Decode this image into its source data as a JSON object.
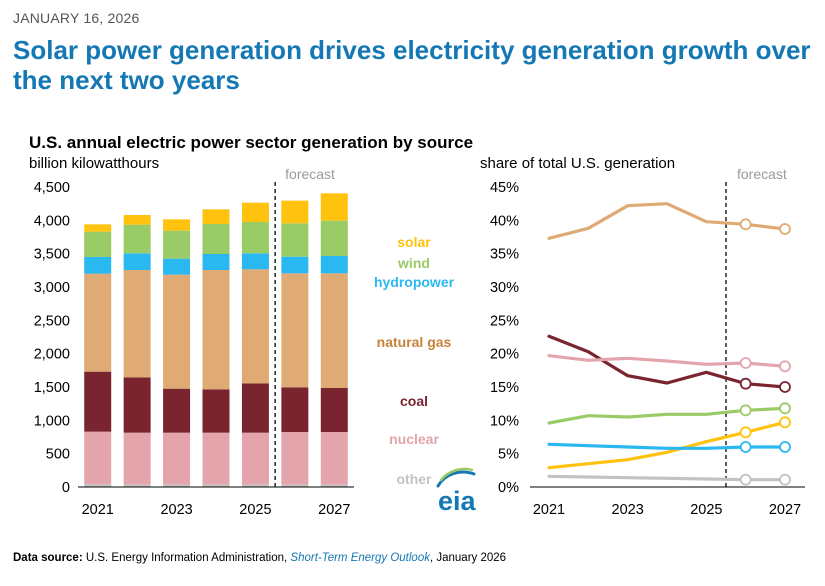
{
  "header": {
    "date": "JANUARY 16, 2026",
    "headline": "Solar power generation drives electricity generation growth over the next two years"
  },
  "chart": {
    "subtitle": "U.S. annual electric power sector generation by source",
    "left_unit": "billion kilowatthours",
    "right_unit": "share of total U.S. generation",
    "forecast_label": "forecast"
  },
  "legend": {
    "solar": "solar",
    "wind": "wind",
    "hydropower": "hydropower",
    "natural_gas": "natural gas",
    "coal": "coal",
    "nuclear": "nuclear",
    "other": "other"
  },
  "logo_text": "eia",
  "footer": {
    "label": "Data source:",
    "source": "U.S. Energy Information Administration,",
    "report": "Short-Term Energy Outlook",
    "date": ", January 2026"
  },
  "colors": {
    "solar": "#ffc20e",
    "wind": "#99cc66",
    "hydropower": "#2ab8f0",
    "natural_gas": "#e0aa74",
    "coal": "#7a2430",
    "nuclear": "#e4a4ac",
    "other": "#c2c2c2",
    "legend_natural_gas": "#c8823a",
    "headline": "#1478b4"
  },
  "chart_data": [
    {
      "type": "bar",
      "stacked": true,
      "categories": [
        2021,
        2022,
        2023,
        2024,
        2025,
        2026,
        2027
      ],
      "x_tick_labels": [
        "2021",
        "2023",
        "2025",
        "2027"
      ],
      "forecast_start": 2026,
      "ylim": [
        0,
        4500
      ],
      "y_tick_labels": [
        "0",
        "500",
        "1,000",
        "1,500",
        "2,000",
        "2,500",
        "3,000",
        "3,500",
        "4,000",
        "4,500"
      ],
      "series": [
        {
          "name": "other",
          "key": "other",
          "values": [
            40,
            35,
            35,
            35,
            35,
            35,
            35
          ]
        },
        {
          "name": "nuclear",
          "key": "nuclear",
          "values": [
            790,
            780,
            780,
            780,
            780,
            790,
            790
          ]
        },
        {
          "name": "coal",
          "key": "coal",
          "values": [
            900,
            830,
            660,
            650,
            740,
            670,
            660
          ]
        },
        {
          "name": "natural gas",
          "key": "natural_gas",
          "values": [
            1470,
            1610,
            1710,
            1790,
            1710,
            1710,
            1720
          ]
        },
        {
          "name": "hydropower",
          "key": "hydropower",
          "values": [
            250,
            250,
            240,
            240,
            240,
            250,
            260
          ]
        },
        {
          "name": "wind",
          "key": "wind",
          "values": [
            380,
            430,
            420,
            450,
            470,
            500,
            530
          ]
        },
        {
          "name": "solar",
          "key": "solar",
          "values": [
            110,
            145,
            170,
            220,
            290,
            340,
            410
          ]
        }
      ]
    },
    {
      "type": "line",
      "x": [
        2021,
        2022,
        2023,
        2024,
        2025,
        2026,
        2027
      ],
      "x_tick_labels": [
        "2021",
        "2023",
        "2025",
        "2027"
      ],
      "forecast_start": 2026,
      "ylim": [
        0,
        45
      ],
      "y_tick_labels": [
        "0%",
        "5%",
        "10%",
        "15%",
        "20%",
        "25%",
        "30%",
        "35%",
        "40%",
        "45%"
      ],
      "series": [
        {
          "name": "natural gas",
          "key": "natural_gas",
          "values": [
            37.3,
            38.8,
            42.2,
            42.5,
            39.8,
            39.4,
            38.7
          ]
        },
        {
          "name": "coal",
          "key": "coal",
          "values": [
            22.6,
            20.3,
            16.7,
            15.6,
            17.2,
            15.5,
            15.0
          ]
        },
        {
          "name": "nuclear",
          "key": "nuclear",
          "values": [
            19.7,
            19.0,
            19.3,
            18.9,
            18.4,
            18.6,
            18.1
          ]
        },
        {
          "name": "wind",
          "key": "wind",
          "values": [
            9.6,
            10.7,
            10.5,
            10.9,
            10.9,
            11.5,
            11.8
          ]
        },
        {
          "name": "solar",
          "key": "solar",
          "values": [
            2.9,
            3.5,
            4.1,
            5.2,
            6.8,
            8.2,
            9.7
          ]
        },
        {
          "name": "hydropower",
          "key": "hydropower",
          "values": [
            6.4,
            6.2,
            6.0,
            5.8,
            5.8,
            6.0,
            6.0
          ]
        },
        {
          "name": "other",
          "key": "other",
          "values": [
            1.6,
            1.5,
            1.4,
            1.3,
            1.2,
            1.1,
            1.1
          ]
        }
      ]
    }
  ]
}
